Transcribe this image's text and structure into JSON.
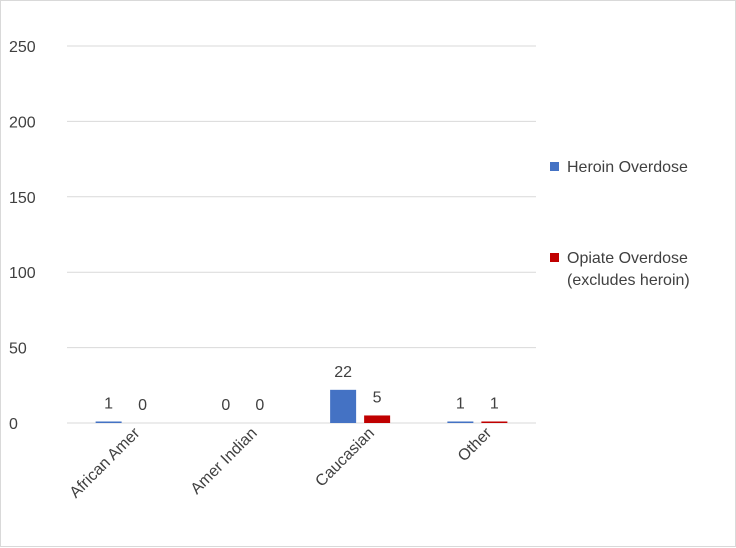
{
  "chart_data": {
    "type": "bar",
    "categories": [
      "African Amer",
      "Amer Indian",
      "Caucasian",
      "Other"
    ],
    "series": [
      {
        "name": "Heroin Overdose",
        "values": [
          1,
          0,
          22,
          1
        ],
        "color": "#4472c4"
      },
      {
        "name": "Opiate Overdose (excludes heroin)",
        "values": [
          0,
          0,
          5,
          1
        ],
        "color": "#c00000"
      }
    ],
    "legend_lines": [
      [
        "Heroin Overdose"
      ],
      [
        "Opiate Overdose",
        "(excludes heroin)"
      ]
    ],
    "ylim": [
      0,
      250
    ],
    "yticks": [
      0,
      50,
      100,
      150,
      200,
      250
    ],
    "grid": true,
    "legend_position": "right",
    "gridline_color": "#d9d9d9"
  }
}
